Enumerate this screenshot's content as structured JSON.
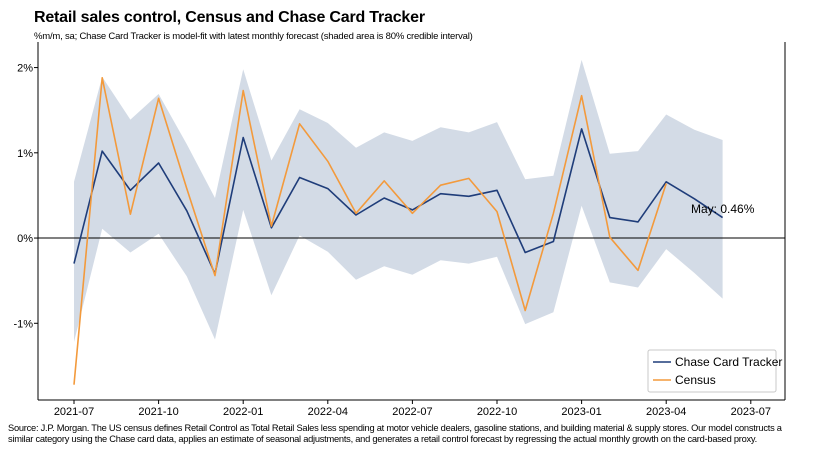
{
  "title": "Retail sales control, Census and Chase Card Tracker",
  "subtitle": "%m/m, sa; Chase Card Tracker is model-fit with latest monthly forecast (shaded area is 80% credible interval)",
  "source": "Source: J.P. Morgan. The US census defines Retail Control as Total Retail Sales less spending at motor vehicle dealers, gasoline stations, and building material & supply stores. Our model constructs a similar category using the Chase card data, applies an estimate of seasonal adjustments, and generates a retail control forecast by regressing the actual monthly growth on the card-based proxy.",
  "annotation": "May: 0.46%",
  "colors": {
    "tracker": "#1f3d7a",
    "census": "#f39a3c",
    "band": "#d3dbe6",
    "zero": "#000000"
  },
  "chart_data": {
    "type": "line",
    "title": "Retail sales control, Census and Chase Card Tracker",
    "x": [
      "2021-07",
      "2021-08",
      "2021-09",
      "2021-10",
      "2021-11",
      "2021-12",
      "2022-01",
      "2022-02",
      "2022-03",
      "2022-04",
      "2022-05",
      "2022-06",
      "2022-07",
      "2022-08",
      "2022-09",
      "2022-10",
      "2022-11",
      "2022-12",
      "2023-01",
      "2023-02",
      "2023-03",
      "2023-04",
      "2023-05",
      "2023-06"
    ],
    "x_ticks": [
      "2021-07",
      "2021-10",
      "2022-01",
      "2022-04",
      "2022-07",
      "2022-10",
      "2023-01",
      "2023-04",
      "2023-07"
    ],
    "x_range": [
      "2021-06",
      "2023-07"
    ],
    "y_ticks": [
      -1,
      0,
      1,
      2
    ],
    "y_tick_labels": [
      "-1%",
      "0%",
      "1%",
      "2%"
    ],
    "ylim": [
      -1.9,
      2.3
    ],
    "series": [
      {
        "name": "Chase Card Tracker",
        "values": [
          -0.3,
          1.02,
          0.56,
          0.88,
          0.32,
          -0.42,
          1.18,
          0.12,
          0.71,
          0.58,
          0.27,
          0.47,
          0.33,
          0.52,
          0.49,
          0.56,
          -0.17,
          -0.04,
          1.28,
          0.24,
          0.19,
          0.66,
          0.46,
          0.24
        ]
      },
      {
        "name": "Census",
        "values": [
          -1.72,
          1.88,
          0.28,
          1.64,
          0.58,
          -0.44,
          1.73,
          0.14,
          1.34,
          0.9,
          0.29,
          0.67,
          0.29,
          0.62,
          0.7,
          0.31,
          -0.85,
          0.29,
          1.67,
          0.01,
          -0.38,
          0.64,
          null,
          null
        ]
      }
    ],
    "band": {
      "lower": [
        -1.22,
        0.11,
        -0.17,
        0.05,
        -0.45,
        -1.19,
        0.33,
        -0.67,
        0.03,
        -0.16,
        -0.49,
        -0.33,
        -0.43,
        -0.26,
        -0.3,
        -0.22,
        -1.01,
        -0.87,
        0.38,
        -0.52,
        -0.58,
        -0.13,
        -0.41,
        -0.71
      ],
      "upper": [
        0.66,
        1.89,
        1.39,
        1.69,
        1.1,
        0.47,
        1.98,
        0.91,
        1.51,
        1.35,
        1.06,
        1.24,
        1.14,
        1.3,
        1.24,
        1.36,
        0.69,
        0.73,
        2.09,
        0.99,
        1.02,
        1.45,
        1.27,
        1.15
      ]
    },
    "legend": "bottom-right",
    "grid": false
  }
}
